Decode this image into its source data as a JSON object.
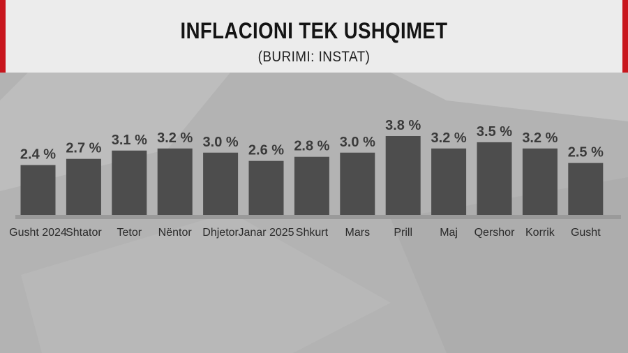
{
  "header": {
    "title": "INFLACIONI TEK USHQIMET",
    "subtitle": "(BURIMI: INSTAT)"
  },
  "colors": {
    "bar": "#4d4d4d",
    "accent": "#c8161d",
    "header_bg": "#ececec",
    "background": "#b3b3b3"
  },
  "chart_data": {
    "type": "bar",
    "title": "INFLACIONI TEK USHQIMET",
    "subtitle": "(BURIMI: INSTAT)",
    "xlabel": "",
    "ylabel": "",
    "ylim": [
      0,
      3.8
    ],
    "grid": false,
    "legend": "none",
    "value_suffix": " %",
    "categories": [
      "Gusht 2024",
      "Shtator",
      "Tetor",
      "Nëntor",
      "Dhjetor",
      "Janar 2025",
      "Shkurt",
      "Mars",
      "Prill",
      "Maj",
      "Qershor",
      "Korrik",
      "Gusht"
    ],
    "values": [
      2.4,
      2.7,
      3.1,
      3.2,
      3.0,
      2.6,
      2.8,
      3.0,
      3.8,
      3.2,
      3.5,
      3.2,
      2.5
    ],
    "value_labels": [
      "2.4 %",
      "2.7 %",
      "3.1 %",
      "3.2 %",
      "3.0 %",
      "2.6 %",
      "2.8 %",
      "3.0 %",
      "3.8 %",
      "3.2 %",
      "3.5 %",
      "3.2 %",
      "2.5 %"
    ]
  }
}
